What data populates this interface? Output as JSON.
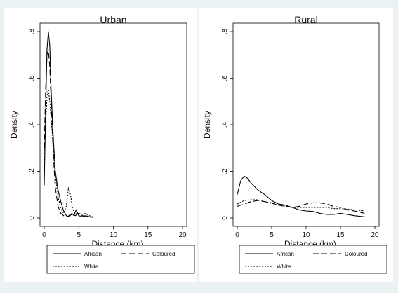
{
  "chart_data": [
    {
      "type": "line",
      "title": "Urban",
      "xlabel": "Distance (km)",
      "ylabel": "Density",
      "xlim": [
        0,
        20
      ],
      "ylim": [
        0,
        0.8
      ],
      "xticks": [
        0,
        5,
        10,
        15,
        20
      ],
      "yticks": [
        0,
        0.2,
        0.4,
        0.6,
        0.8
      ],
      "ytick_labels": [
        "0",
        ".2",
        ".4",
        ".6",
        ".8"
      ],
      "grid": false,
      "legend": "bottom",
      "series": [
        {
          "name": "African",
          "style": "solid",
          "x": [
            0,
            0.2,
            0.4,
            0.6,
            0.8,
            1.0,
            1.3,
            1.6,
            2.0,
            2.4,
            2.8,
            3.2,
            3.6,
            4.0,
            4.3,
            4.6,
            5.0,
            5.5,
            6.0,
            6.5,
            7.0
          ],
          "y": [
            0.14,
            0.45,
            0.72,
            0.8,
            0.74,
            0.55,
            0.35,
            0.2,
            0.12,
            0.07,
            0.03,
            0.01,
            0.005,
            0.02,
            0.01,
            0.035,
            0.01,
            0.005,
            0.01,
            0.005,
            0.003
          ]
        },
        {
          "name": "Coloured",
          "style": "dashed",
          "x": [
            0,
            0.2,
            0.4,
            0.6,
            0.8,
            1.0,
            1.3,
            1.6,
            2.0,
            2.4,
            2.8,
            3.2,
            3.6,
            4.0,
            4.5,
            5.0,
            5.5,
            6.0,
            6.5,
            7.0
          ],
          "y": [
            0.3,
            0.55,
            0.7,
            0.72,
            0.65,
            0.5,
            0.28,
            0.13,
            0.05,
            0.02,
            0.01,
            0.005,
            0.01,
            0.015,
            0.01,
            0.02,
            0.01,
            0.008,
            0.005,
            0.003
          ]
        },
        {
          "name": "White",
          "style": "dotted",
          "x": [
            0,
            0.2,
            0.4,
            0.6,
            0.8,
            1.0,
            1.3,
            1.6,
            2.0,
            2.4,
            2.8,
            3.2,
            3.5,
            3.8,
            4.1,
            4.4,
            5.0,
            5.5,
            6.0,
            6.5,
            7.0
          ],
          "y": [
            0.25,
            0.4,
            0.52,
            0.55,
            0.5,
            0.43,
            0.3,
            0.18,
            0.09,
            0.04,
            0.02,
            0.05,
            0.13,
            0.1,
            0.04,
            0.02,
            0.02,
            0.015,
            0.02,
            0.01,
            0.005
          ]
        }
      ]
    },
    {
      "type": "line",
      "title": "Rural",
      "xlabel": "Distance (km)",
      "ylabel": "Density",
      "xlim": [
        0,
        20
      ],
      "ylim": [
        0,
        0.8
      ],
      "xticks": [
        0,
        5,
        10,
        15,
        20
      ],
      "yticks": [
        0,
        0.2,
        0.4,
        0.6,
        0.8
      ],
      "ytick_labels": [
        "0",
        ".2",
        ".4",
        ".6",
        ".8"
      ],
      "grid": false,
      "legend": "bottom",
      "series": [
        {
          "name": "African",
          "style": "solid",
          "x": [
            0,
            0.5,
            1.0,
            1.5,
            2.0,
            3.0,
            4.0,
            5.0,
            6.0,
            7.0,
            8.0,
            9.0,
            10.0,
            11.0,
            12.0,
            13.0,
            14.0,
            15.0,
            16.0,
            17.0,
            18.5
          ],
          "y": [
            0.1,
            0.16,
            0.18,
            0.17,
            0.15,
            0.12,
            0.1,
            0.075,
            0.06,
            0.055,
            0.045,
            0.035,
            0.03,
            0.028,
            0.02,
            0.015,
            0.015,
            0.02,
            0.015,
            0.01,
            0.005
          ]
        },
        {
          "name": "Coloured",
          "style": "dashed",
          "x": [
            0,
            1,
            2,
            3,
            4,
            5,
            6,
            7,
            8,
            9,
            10,
            11,
            12,
            13,
            14,
            15,
            16,
            17,
            18.5
          ],
          "y": [
            0.05,
            0.06,
            0.07,
            0.075,
            0.07,
            0.065,
            0.055,
            0.05,
            0.045,
            0.05,
            0.06,
            0.065,
            0.065,
            0.06,
            0.05,
            0.045,
            0.035,
            0.03,
            0.02
          ]
        },
        {
          "name": "White",
          "style": "dotted",
          "x": [
            0,
            1,
            2,
            3,
            4,
            5,
            6,
            7,
            8,
            9,
            10,
            11,
            12,
            13,
            14,
            15,
            16,
            17,
            18.5
          ],
          "y": [
            0.06,
            0.075,
            0.078,
            0.078,
            0.07,
            0.063,
            0.055,
            0.05,
            0.045,
            0.045,
            0.045,
            0.045,
            0.045,
            0.045,
            0.04,
            0.04,
            0.038,
            0.035,
            0.03
          ]
        }
      ]
    }
  ]
}
